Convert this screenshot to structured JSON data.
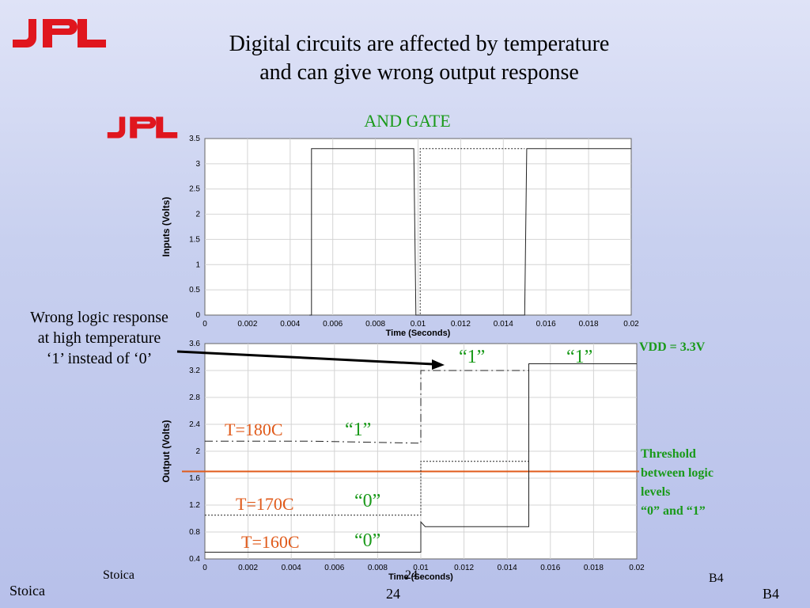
{
  "title": {
    "line1": "Digital circuits are affected by temperature",
    "line2": "and can give wrong output response"
  },
  "logo_text": "JPL",
  "chart_title": "AND GATE",
  "callout": {
    "line1": "Wrong logic response",
    "line2": "at high temperature",
    "line3": "‘1’ instead of ‘0’"
  },
  "vdd_label": "VDD = 3.3V",
  "threshold_label": {
    "line1": "Threshold",
    "line2": "between logic",
    "line3": "levels",
    "line4": "“0” and “1”"
  },
  "temp_labels": [
    "T=180C",
    "T=170C",
    "T=160C"
  ],
  "logic_labels": {
    "high_left": "“1”",
    "high_right": "“1”",
    "t180": "“1”",
    "t170": "“0”",
    "t160": "“0”"
  },
  "footer": {
    "author_small": "Stoica",
    "page_small": "24",
    "code_small": "B4",
    "author": "Stoica",
    "page": "24",
    "code": "B4"
  },
  "colors": {
    "green": "#1a9a1a",
    "orange": "#e05a1a",
    "logo_red": "#e0161e"
  },
  "chart_data": [
    {
      "type": "line",
      "ylabel": "Inputs (Volts)",
      "xlabel": "Time (Seconds)",
      "xlim": [
        0,
        0.02
      ],
      "ylim": [
        0,
        3.5
      ],
      "xticks": [
        "0",
        "0.002",
        "0.004",
        "0.006",
        "0.008",
        "0.01",
        "0.012",
        "0.014",
        "0.016",
        "0.018",
        "0.02"
      ],
      "yticks": [
        "0",
        "0.5",
        "1",
        "1.5",
        "2",
        "2.5",
        "3",
        "3.5"
      ],
      "grid": true,
      "series": [
        {
          "style": "solid",
          "x": [
            0.0049,
            0.005,
            0.005,
            0.0098,
            0.0099,
            0.015,
            0.0151,
            0.02
          ],
          "y": [
            0,
            0,
            3.3,
            3.3,
            0,
            0,
            3.3,
            3.3
          ]
        },
        {
          "style": "dotted",
          "x": [
            0.01,
            0.0101,
            0.0101,
            0.0149,
            0.015
          ],
          "y": [
            0,
            0,
            3.3,
            3.3,
            3.3
          ]
        }
      ]
    },
    {
      "type": "line",
      "ylabel": "Output (Volts)",
      "xlabel": "Time (Seconds)",
      "xlim": [
        0,
        0.02
      ],
      "ylim": [
        0.4,
        3.6
      ],
      "xticks": [
        "0",
        "0.002",
        "0.004",
        "0.006",
        "0.008",
        "0.01",
        "0.012",
        "0.014",
        "0.016",
        "0.018",
        "0.02"
      ],
      "yticks": [
        "0.4",
        "0.8",
        "1.2",
        "1.6",
        "2",
        "2.4",
        "2.8",
        "3.2",
        "3.6"
      ],
      "grid": true,
      "threshold": 1.7,
      "series": [
        {
          "style": "dashdot",
          "x": [
            0,
            0.005,
            0.0099,
            0.01,
            0.01,
            0.015,
            0.015,
            0.02
          ],
          "y": [
            2.15,
            2.15,
            2.12,
            2.12,
            3.2,
            3.2,
            3.3,
            3.3
          ]
        },
        {
          "style": "dotted",
          "x": [
            0,
            0.005,
            0.0099,
            0.01,
            0.01,
            0.015,
            0.015,
            0.02
          ],
          "y": [
            1.05,
            1.05,
            1.05,
            1.05,
            1.85,
            1.85,
            3.3,
            3.3
          ]
        },
        {
          "style": "solid",
          "x": [
            0,
            0.005,
            0.0099,
            0.01,
            0.01,
            0.0102,
            0.015,
            0.015,
            0.02
          ],
          "y": [
            0.5,
            0.5,
            0.5,
            0.5,
            0.95,
            0.88,
            0.88,
            3.3,
            3.3
          ]
        }
      ]
    }
  ]
}
